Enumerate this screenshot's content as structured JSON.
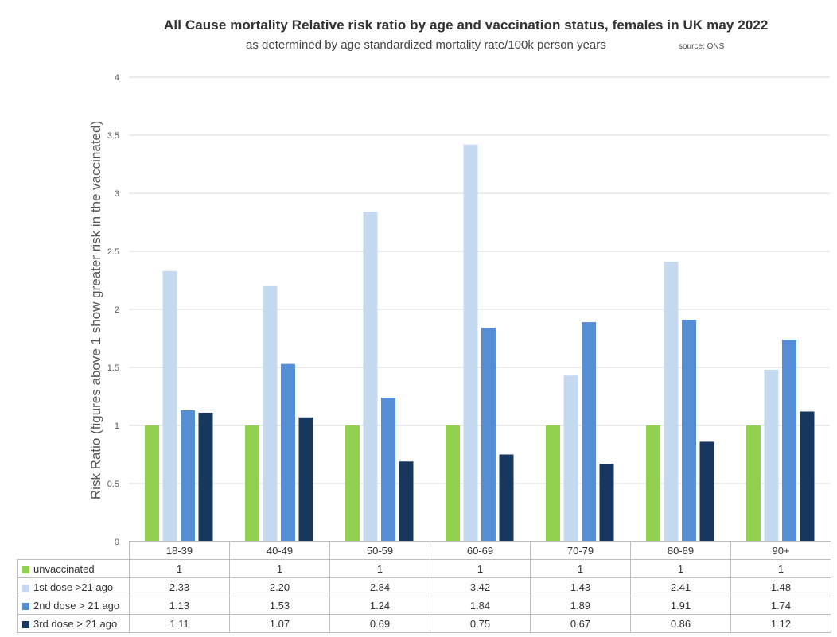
{
  "chart_data": {
    "type": "bar",
    "title": "All Cause mortality Relative risk ratio by age and vaccination status, females in UK may 2022",
    "subtitle": "as determined by age standardized mortality rate/100k person years",
    "source": "source: ONS",
    "ylabel": "Risk Ratio (figures above 1 show greater risk in the vaccinated)",
    "xlabel": "",
    "ylim": [
      0,
      4
    ],
    "yticks": [
      "0",
      "0.5",
      "1",
      "1.5",
      "2",
      "2.5",
      "3",
      "3.5",
      "4"
    ],
    "grid": true,
    "legend_placement": "data-table",
    "categories": [
      "18-39",
      "40-49",
      "50-59",
      "60-69",
      "70-79",
      "80-89",
      "90+"
    ],
    "series": [
      {
        "name": "unvaccinated",
        "color": "#92d050",
        "values": [
          1,
          1,
          1,
          1,
          1,
          1,
          1
        ],
        "labels": [
          "1",
          "1",
          "1",
          "1",
          "1",
          "1",
          "1"
        ]
      },
      {
        "name": "1st dose >21 ago",
        "color": "#c5d9f1",
        "values": [
          2.33,
          2.2,
          2.84,
          3.42,
          1.43,
          2.41,
          1.48
        ],
        "labels": [
          "2.33",
          "2.20",
          "2.84",
          "3.42",
          "1.43",
          "2.41",
          "1.48"
        ]
      },
      {
        "name": "2nd dose > 21 ago",
        "color": "#558ed5",
        "values": [
          1.13,
          1.53,
          1.24,
          1.84,
          1.89,
          1.91,
          1.74
        ],
        "labels": [
          "1.13",
          "1.53",
          "1.24",
          "1.84",
          "1.89",
          "1.91",
          "1.74"
        ]
      },
      {
        "name": "3rd dose > 21 ago",
        "color": "#17375e",
        "values": [
          1.11,
          1.07,
          0.69,
          0.75,
          0.67,
          0.86,
          1.12
        ],
        "labels": [
          "1.11",
          "1.07",
          "0.69",
          "0.75",
          "0.67",
          "0.86",
          "1.12"
        ]
      }
    ]
  }
}
